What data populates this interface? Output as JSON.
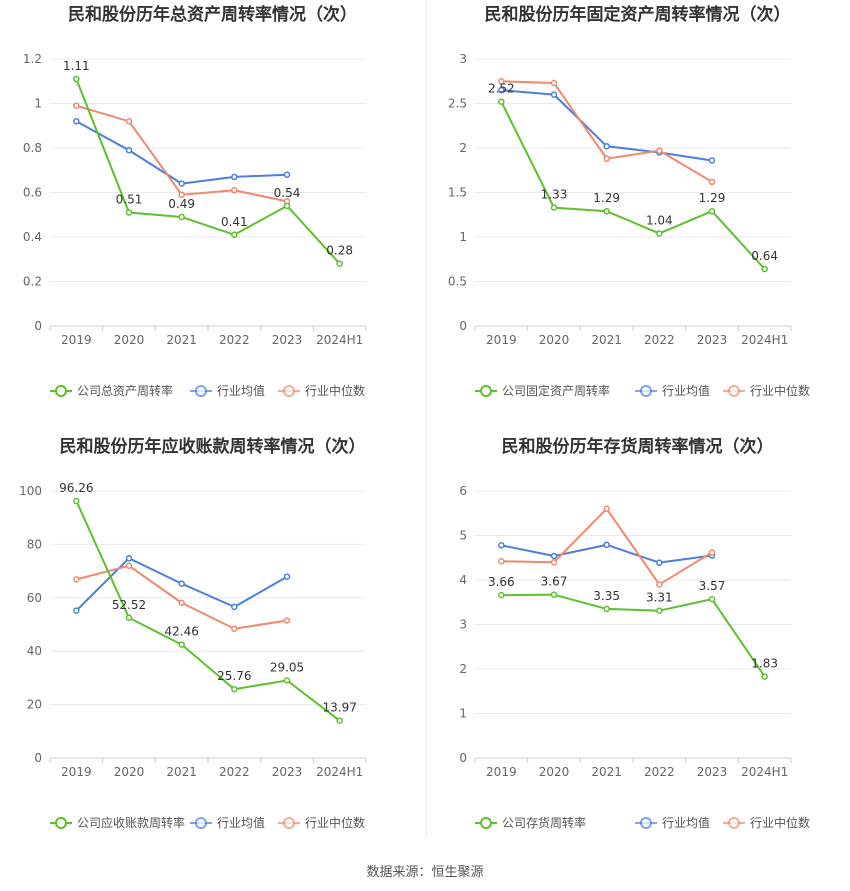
{
  "source": "数据来源：恒生聚源",
  "chart_data": [
    {
      "type": "line",
      "title": "民和股份历年总资产周转率情况（次）",
      "categories": [
        "2019",
        "2020",
        "2021",
        "2022",
        "2023",
        "2024H1"
      ],
      "ylim": [
        0,
        1.2
      ],
      "yticks": [
        0,
        0.2,
        0.4,
        0.6,
        0.8,
        1,
        1.2
      ],
      "ytick_labels": [
        "0",
        "0.2",
        "0.4",
        "0.6",
        "0.8",
        "1",
        "1.2"
      ],
      "legend": "bottom",
      "series": [
        {
          "name": "公司总资产周转率",
          "color": "#5cc12d",
          "values": [
            1.11,
            0.51,
            0.49,
            0.41,
            0.54,
            0.28
          ],
          "labels": [
            "1.11",
            "0.51",
            "0.49",
            "0.41",
            "0.54",
            "0.28"
          ]
        },
        {
          "name": "行业均值",
          "color": "#4a7fdc",
          "values": [
            0.92,
            0.79,
            0.64,
            0.67,
            0.68,
            null
          ]
        },
        {
          "name": "行业中位数",
          "color": "#f0896b",
          "values": [
            0.99,
            0.92,
            0.59,
            0.61,
            0.56,
            null
          ]
        }
      ]
    },
    {
      "type": "line",
      "title": "民和股份历年固定资产周转率情况（次）",
      "categories": [
        "2019",
        "2020",
        "2021",
        "2022",
        "2023",
        "2024H1"
      ],
      "ylim": [
        0,
        3
      ],
      "yticks": [
        0,
        0.5,
        1,
        1.5,
        2,
        2.5,
        3
      ],
      "ytick_labels": [
        "0",
        "0.5",
        "1",
        "1.5",
        "2",
        "2.5",
        "3"
      ],
      "legend": "bottom",
      "series": [
        {
          "name": "公司固定资产周转率",
          "color": "#5cc12d",
          "values": [
            2.52,
            1.33,
            1.29,
            1.04,
            1.29,
            0.64
          ],
          "labels": [
            "2.52",
            "1.33",
            "1.29",
            "1.04",
            "1.29",
            "0.64"
          ]
        },
        {
          "name": "行业均值",
          "color": "#4a7fdc",
          "values": [
            2.65,
            2.6,
            2.02,
            1.95,
            1.86,
            null
          ]
        },
        {
          "name": "行业中位数",
          "color": "#f0896b",
          "values": [
            2.75,
            2.73,
            1.88,
            1.97,
            1.62,
            null
          ]
        }
      ]
    },
    {
      "type": "line",
      "title": "民和股份历年应收账款周转率情况（次）",
      "categories": [
        "2019",
        "2020",
        "2021",
        "2022",
        "2023",
        "2024H1"
      ],
      "ylim": [
        0,
        100
      ],
      "yticks": [
        0,
        20,
        40,
        60,
        80,
        100
      ],
      "ytick_labels": [
        "0",
        "20",
        "40",
        "60",
        "80",
        "100"
      ],
      "legend": "bottom",
      "series": [
        {
          "name": "公司应收账款周转率",
          "color": "#5cc12d",
          "values": [
            96.26,
            52.52,
            42.46,
            25.76,
            29.05,
            13.97
          ],
          "labels": [
            "96.26",
            "52.52",
            "42.46",
            "25.76",
            "29.05",
            "13.97"
          ]
        },
        {
          "name": "行业均值",
          "color": "#4a7fdc",
          "values": [
            55.2,
            74.8,
            65.3,
            56.6,
            67.9,
            null
          ]
        },
        {
          "name": "行业中位数",
          "color": "#f0896b",
          "values": [
            66.9,
            72.0,
            58.1,
            48.4,
            51.5,
            null
          ]
        }
      ]
    },
    {
      "type": "line",
      "title": "民和股份历年存货周转率情况（次）",
      "categories": [
        "2019",
        "2020",
        "2021",
        "2022",
        "2023",
        "2024H1"
      ],
      "ylim": [
        0,
        6
      ],
      "yticks": [
        0,
        1,
        2,
        3,
        4,
        5,
        6
      ],
      "ytick_labels": [
        "0",
        "1",
        "2",
        "3",
        "4",
        "5",
        "6"
      ],
      "legend": "bottom",
      "series": [
        {
          "name": "公司存货周转率",
          "color": "#5cc12d",
          "values": [
            3.66,
            3.67,
            3.35,
            3.31,
            3.57,
            1.83
          ],
          "labels": [
            "3.66",
            "3.67",
            "3.35",
            "3.31",
            "3.57",
            "1.83"
          ]
        },
        {
          "name": "行业均值",
          "color": "#4a7fdc",
          "values": [
            4.78,
            4.54,
            4.79,
            4.39,
            4.55,
            null
          ]
        },
        {
          "name": "行业中位数",
          "color": "#f0896b",
          "values": [
            4.42,
            4.4,
            5.6,
            3.9,
            4.62,
            null
          ]
        }
      ]
    }
  ]
}
